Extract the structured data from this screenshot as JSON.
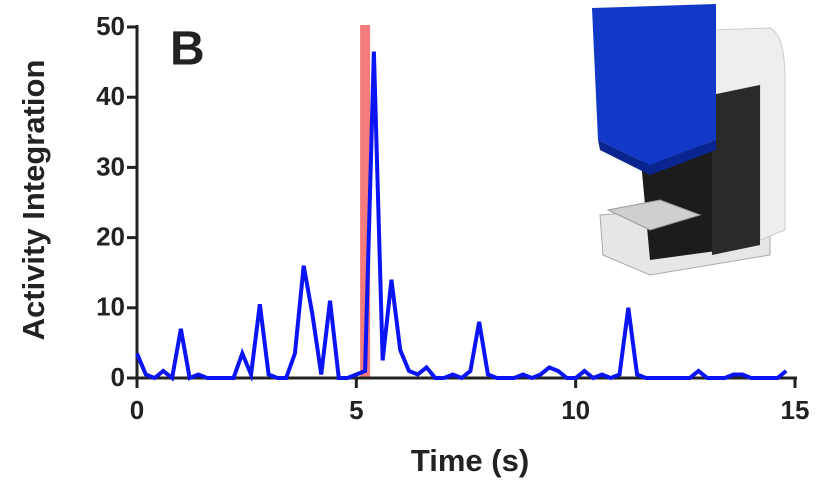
{
  "chart_data": {
    "type": "line",
    "panel_label": "B",
    "x_label": "Time (s)",
    "y_label": "Activity Integration",
    "x": [
      0,
      0.2,
      0.4,
      0.6,
      0.8,
      1.0,
      1.2,
      1.4,
      1.6,
      1.8,
      2.0,
      2.2,
      2.4,
      2.6,
      2.8,
      3.0,
      3.2,
      3.4,
      3.6,
      3.8,
      4.0,
      4.2,
      4.4,
      4.6,
      4.8,
      5.0,
      5.2,
      5.4,
      5.6,
      5.8,
      6.0,
      6.2,
      6.4,
      6.6,
      6.8,
      7.0,
      7.2,
      7.4,
      7.6,
      7.8,
      8.0,
      8.2,
      8.4,
      8.6,
      8.8,
      9.0,
      9.2,
      9.4,
      9.6,
      9.8,
      10.0,
      10.2,
      10.4,
      10.6,
      10.8,
      11.0,
      11.2,
      11.4,
      11.6,
      11.8,
      12.0,
      12.2,
      12.4,
      12.6,
      12.8,
      13.0,
      13.2,
      13.4,
      13.6,
      13.8,
      14.0,
      14.2,
      14.4,
      14.6,
      14.8
    ],
    "series": [
      {
        "color": "#0a14f5",
        "values": [
          3.5,
          0.5,
          0,
          1,
          0,
          7,
          0,
          0.5,
          0,
          0,
          0,
          0,
          3.5,
          0.5,
          10.5,
          0.5,
          0,
          0,
          3.5,
          16,
          9,
          0.5,
          11,
          0,
          0,
          0.5,
          1,
          46.5,
          2.5,
          14,
          4,
          1,
          0.5,
          1.5,
          0,
          0,
          0.5,
          0,
          1,
          8,
          0.5,
          0,
          0,
          0,
          0.5,
          0,
          0.5,
          1.5,
          1,
          0,
          0,
          1,
          0,
          0.5,
          0,
          0.5,
          10,
          0.5,
          0,
          0,
          0,
          0,
          0,
          0,
          1,
          0,
          0,
          0,
          0.5,
          0.5,
          0,
          0,
          0,
          0,
          1
        ]
      }
    ],
    "shaded_x": 5.2,
    "shaded_color": "#f47c7c",
    "xlim": [
      0,
      15
    ],
    "xticks": [
      0,
      5,
      10,
      15
    ],
    "ylim": [
      0,
      50
    ],
    "yticks": [
      0,
      10,
      20,
      30,
      40,
      50
    ]
  }
}
